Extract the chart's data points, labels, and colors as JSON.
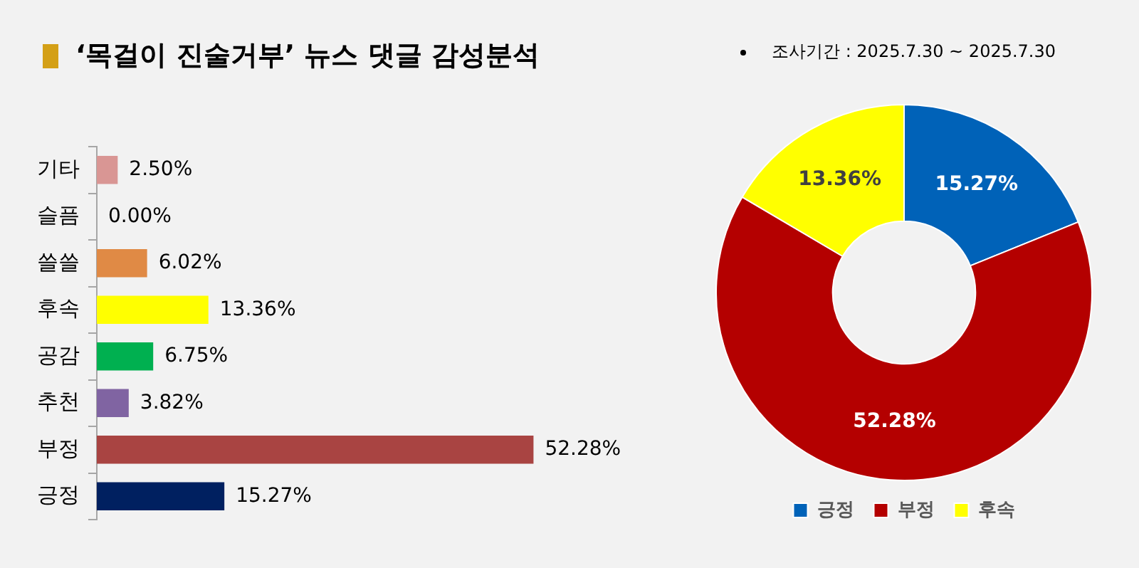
{
  "chart_data": [
    {
      "type": "bar",
      "orientation": "horizontal",
      "title": "‘목걸이 진술거부’ 뉴스 댓글 감성분석",
      "categories": [
        "기타",
        "슬픔",
        "쓸쓸",
        "후속",
        "공감",
        "추천",
        "부정",
        "긍정"
      ],
      "values": [
        2.5,
        0,
        6.02,
        13.36,
        6.75,
        3.82,
        52.28,
        15.27
      ],
      "colors": [
        "#d99694",
        "#bfbfbf",
        "#e08a45",
        "#ffff00",
        "#00b050",
        "#8064a2",
        "#a94442",
        "#002060"
      ],
      "value_labels": [
        "2.50%",
        "0.00%",
        "6.02%",
        "13.36%",
        "6.75%",
        "3.82%",
        "52.28%",
        "15.27%"
      ],
      "tick_labels": "y",
      "legend": false
    },
    {
      "type": "donut",
      "annotations": [
        "조사기간 : 2025.7.30 ~ 2025.7.30"
      ],
      "categories": [
        "긍정",
        "부정",
        "후속"
      ],
      "values": [
        15.27,
        52.28,
        13.36
      ],
      "colors": [
        "#0062b8",
        "#b40000",
        "#ffff00"
      ],
      "value_labels": [
        "15.27%",
        "52.28%",
        "13.36%"
      ],
      "legend": "bottom"
    }
  ]
}
